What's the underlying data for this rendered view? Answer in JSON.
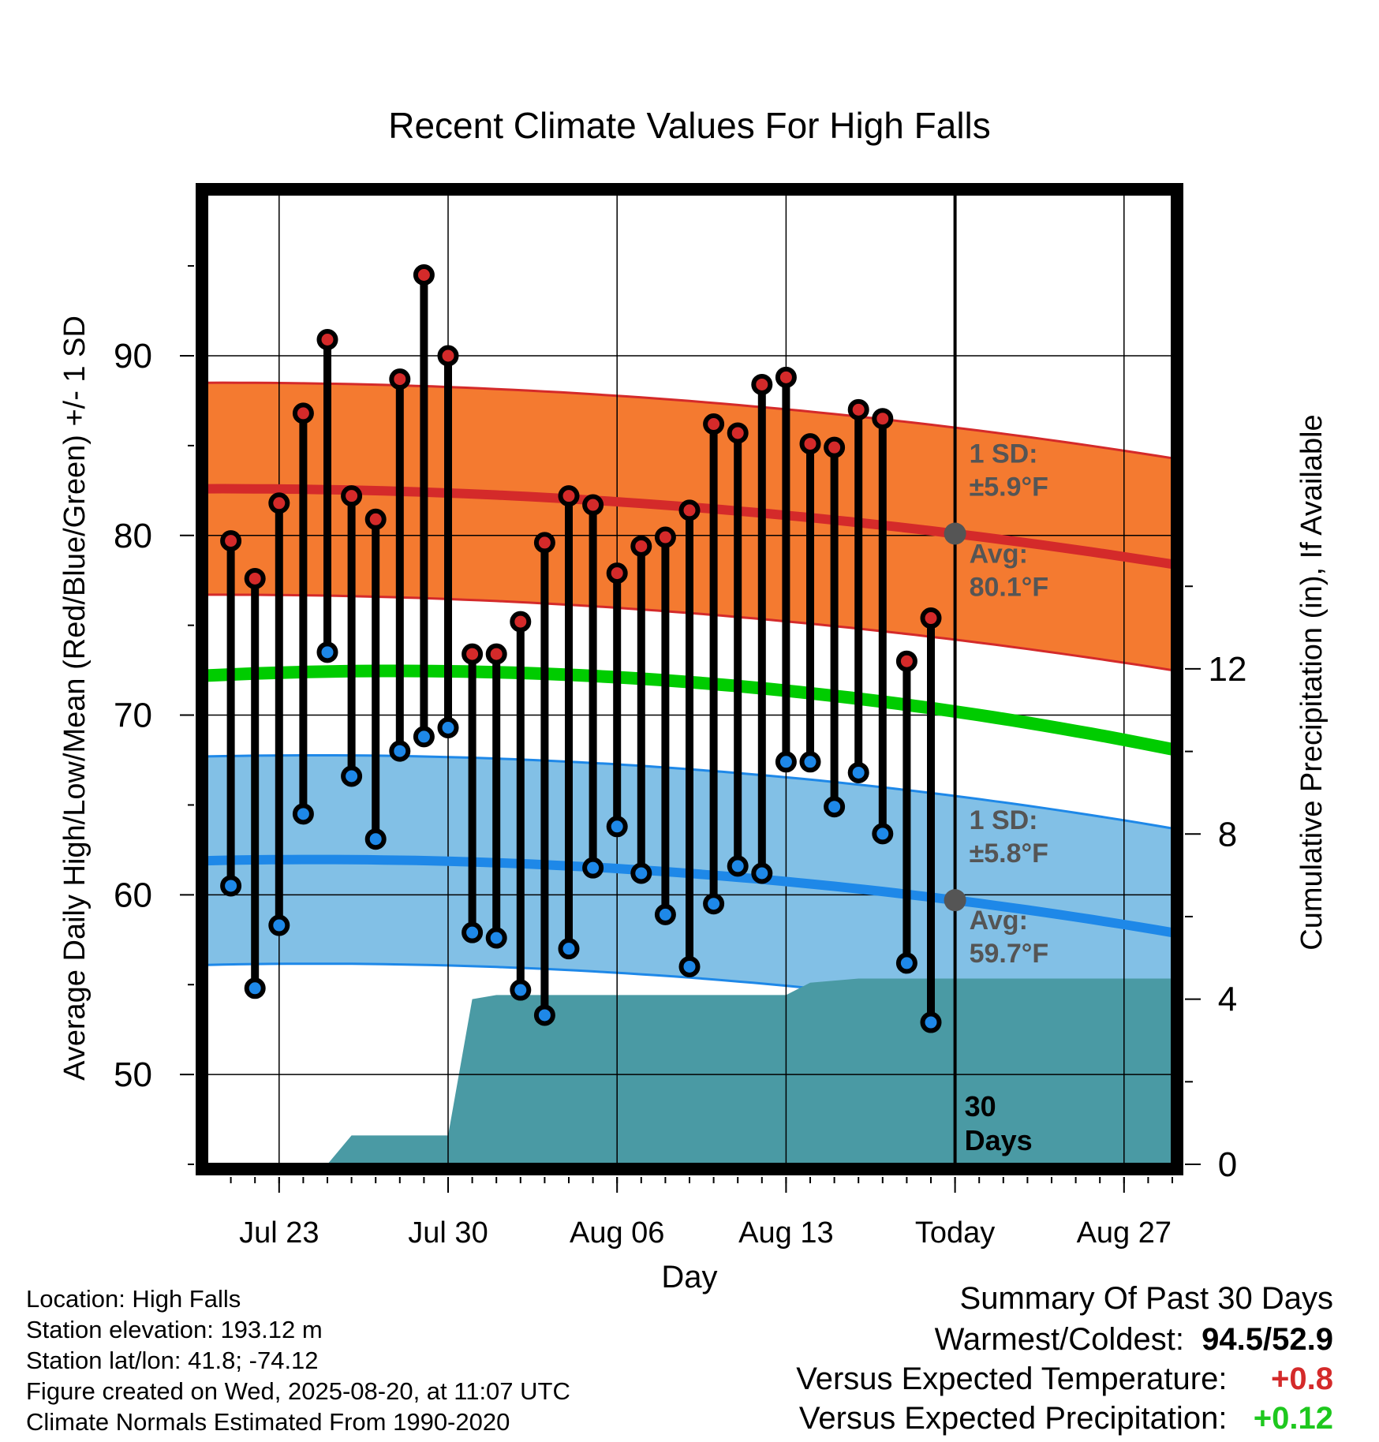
{
  "chart_data": {
    "type": "line",
    "title": "Recent Climate Values For High Falls",
    "xlabel": "Day",
    "ylabel": "Average Daily High/Low/Mean (Red/Blue/Green) +/- 1 SD",
    "y2label": "Cumulative Precipitation (in), If Available",
    "ylim": [
      45,
      99
    ],
    "y2lim": [
      0,
      23.5
    ],
    "yticks": [
      50,
      60,
      70,
      80,
      90
    ],
    "y2ticks": [
      0,
      4,
      8,
      12
    ],
    "x_tick_labels": [
      "Jul 23",
      "Jul 30",
      "Aug 06",
      "Aug 13",
      "Today",
      "Aug 27"
    ],
    "x_range_days": [
      "Jul 20",
      "Aug 29"
    ],
    "grid": true,
    "today_marker": {
      "date": "Aug 20",
      "label_line1": "30",
      "label_line2": "Days"
    },
    "days": [
      "Jul 21",
      "Jul 22",
      "Jul 23",
      "Jul 24",
      "Jul 25",
      "Jul 26",
      "Jul 27",
      "Jul 28",
      "Jul 29",
      "Jul 30",
      "Jul 31",
      "Aug 01",
      "Aug 02",
      "Aug 03",
      "Aug 04",
      "Aug 05",
      "Aug 06",
      "Aug 07",
      "Aug 08",
      "Aug 09",
      "Aug 10",
      "Aug 11",
      "Aug 12",
      "Aug 13",
      "Aug 14",
      "Aug 15",
      "Aug 16",
      "Aug 17",
      "Aug 18",
      "Aug 19"
    ],
    "series": [
      {
        "name": "Daily High",
        "color": "#d42a2a",
        "values": [
          79.7,
          77.6,
          81.8,
          86.8,
          90.9,
          82.2,
          80.9,
          88.7,
          94.5,
          90.0,
          73.4,
          73.4,
          75.2,
          79.6,
          82.2,
          81.7,
          77.9,
          79.4,
          79.9,
          81.4,
          86.2,
          85.7,
          88.4,
          88.8,
          85.1,
          84.9,
          87.0,
          86.5,
          73.0,
          75.4
        ]
      },
      {
        "name": "Daily Low",
        "color": "#1e88e8",
        "values": [
          60.5,
          54.8,
          58.3,
          64.5,
          73.5,
          66.6,
          63.1,
          68.0,
          68.8,
          69.3,
          57.9,
          57.6,
          54.7,
          53.3,
          57.0,
          61.5,
          63.8,
          61.2,
          58.9,
          56.0,
          59.5,
          61.6,
          61.2,
          67.4,
          67.4,
          64.9,
          66.8,
          63.4,
          56.2,
          52.9
        ]
      }
    ],
    "normals": {
      "high_avg": {
        "color": "#d42a2a",
        "start": 82.6,
        "today": 80.1,
        "end": 78.4,
        "sd": 5.9
      },
      "low_avg": {
        "color": "#1e88e8",
        "start": 61.9,
        "today": 59.7,
        "end": 57.9,
        "sd": 5.8
      },
      "mean_avg": {
        "color": "#00cc00",
        "start": 72.2,
        "today": 70.2,
        "end": 68.1
      }
    },
    "precip_cumulative": {
      "color": "#4a9aa4",
      "dates": [
        "Jul 20",
        "Jul 25",
        "Jul 26",
        "Jul 29",
        "Jul 30",
        "Jul 31",
        "Aug 01",
        "Aug 13",
        "Aug 14",
        "Aug 16",
        "Aug 20",
        "Aug 29"
      ],
      "values": [
        0,
        0,
        0.7,
        0.7,
        0.7,
        4.0,
        4.1,
        4.1,
        4.4,
        4.5,
        4.5,
        4.5
      ]
    },
    "annotations": {
      "high_sd_line1": "1 SD:",
      "high_sd_line2": "±5.9°F",
      "high_avg_line1": "Avg:",
      "high_avg_line2": "80.1°F",
      "low_sd_line1": "1 SD:",
      "low_sd_line2": "±5.8°F",
      "low_avg_line1": "Avg:",
      "low_avg_line2": "59.7°F"
    }
  },
  "info": {
    "location": "Location: High Falls",
    "elevation": "Station elevation: 193.12 m",
    "latlon": "Station lat/lon: 41.8; -74.12",
    "created": "Figure created on Wed, 2025-08-20, at 11:07 UTC",
    "normals": "Climate Normals Estimated From 1990-2020"
  },
  "summary": {
    "title": "Summary Of Past 30 Days",
    "warm_label": "Warmest/Coldest:",
    "warm_value": "94.5/52.9",
    "temp_label": "Versus Expected Temperature:",
    "temp_value": "+0.8",
    "precip_label": "Versus Expected Precipitation:",
    "precip_value": "+0.12"
  }
}
